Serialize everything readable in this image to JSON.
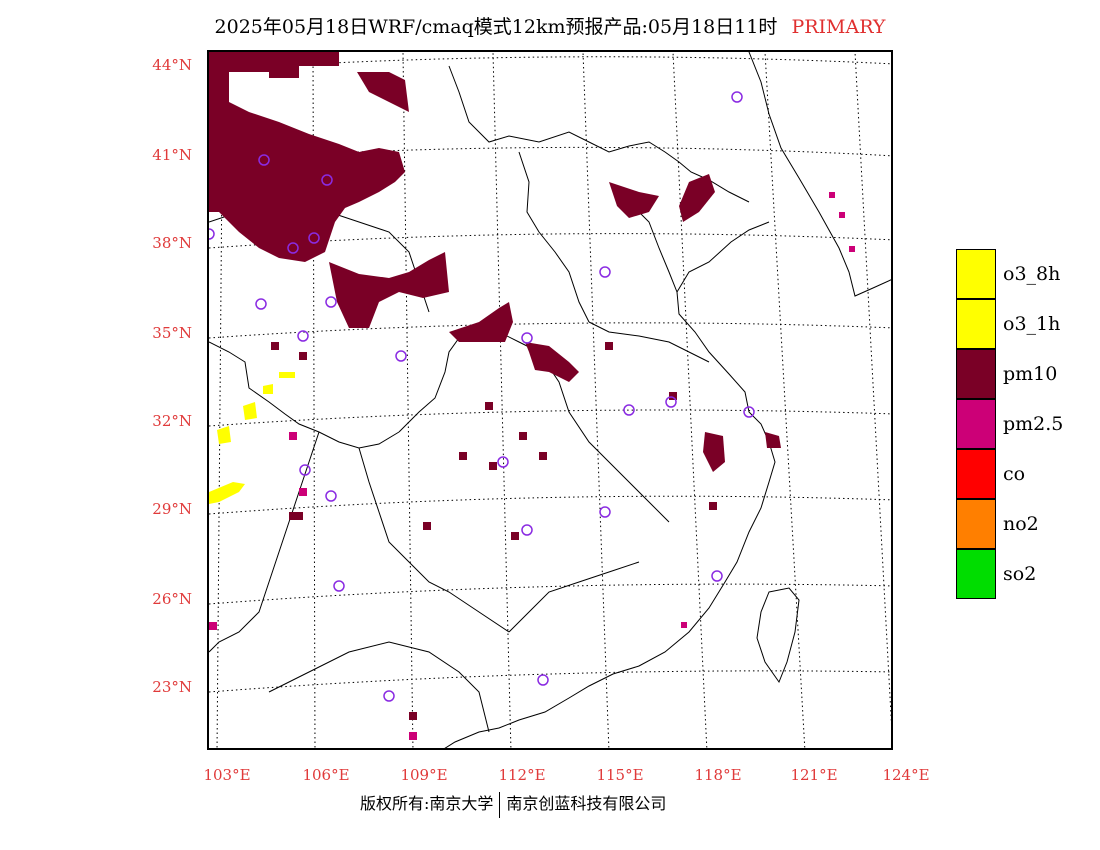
{
  "title": {
    "text": "2025年05月18日WRF/cmaq模式12km预报产品:05月18日11时",
    "tag": "PRIMARY"
  },
  "axes": {
    "lat_labels": [
      "44°N",
      "41°N",
      "38°N",
      "35°N",
      "32°N",
      "29°N",
      "26°N",
      "23°N"
    ],
    "lon_labels": [
      "103°E",
      "106°E",
      "109°E",
      "112°E",
      "115°E",
      "118°E",
      "121°E",
      "124°E"
    ]
  },
  "legend": {
    "items": [
      {
        "label": "o3_8h",
        "color": "#ffff00"
      },
      {
        "label": "o3_1h",
        "color": "#ffff00"
      },
      {
        "label": "pm10",
        "color": "#7a0026"
      },
      {
        "label": "pm2.5",
        "color": "#cc0077"
      },
      {
        "label": "co",
        "color": "#ff0000"
      },
      {
        "label": "no2",
        "color": "#ff7f00"
      },
      {
        "label": "so2",
        "color": "#00dd00"
      }
    ]
  },
  "footer": {
    "left": "版权所有:南京大学",
    "right": "南京创蓝科技有限公司"
  },
  "colors": {
    "label_red": "#e03a3a",
    "station_circle": "#8a2be2"
  }
}
